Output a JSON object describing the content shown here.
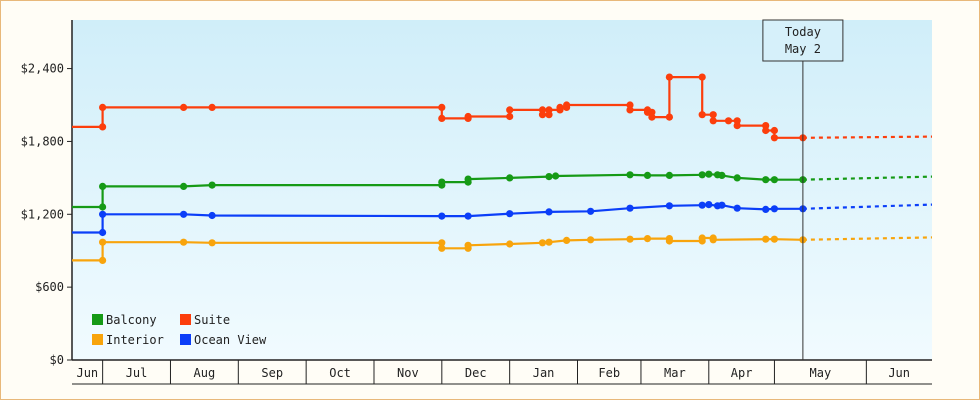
{
  "chart_data": {
    "type": "line",
    "y_ticks": [
      {
        "value": 0,
        "label": "$0"
      },
      {
        "value": 600,
        "label": "$600"
      },
      {
        "value": 1200,
        "label": "$1,200"
      },
      {
        "value": 1800,
        "label": "$1,800"
      },
      {
        "value": 2400,
        "label": "$2,400"
      }
    ],
    "ylim": [
      0,
      2800
    ],
    "xlim": [
      "2025-06-02",
      "2026-06-30"
    ],
    "month_ticks": [
      {
        "label": "Jun",
        "start": "2025-06-02",
        "end": "2025-06-16"
      },
      {
        "label": "Jul",
        "start": "2025-06-16",
        "end": "2025-07-17"
      },
      {
        "label": "Aug",
        "start": "2025-07-17",
        "end": "2025-08-17"
      },
      {
        "label": "Sep",
        "start": "2025-08-17",
        "end": "2025-09-17"
      },
      {
        "label": "Oct",
        "start": "2025-09-17",
        "end": "2025-10-18"
      },
      {
        "label": "Nov",
        "start": "2025-10-18",
        "end": "2025-11-18"
      },
      {
        "label": "Dec",
        "start": "2025-11-18",
        "end": "2025-12-19"
      },
      {
        "label": "Jan",
        "start": "2025-12-19",
        "end": "2026-01-19"
      },
      {
        "label": "Feb",
        "start": "2026-01-19",
        "end": "2026-02-17"
      },
      {
        "label": "Mar",
        "start": "2026-02-17",
        "end": "2026-03-20"
      },
      {
        "label": "Apr",
        "start": "2026-03-20",
        "end": "2026-04-19"
      },
      {
        "label": "May",
        "start": "2026-04-19",
        "end": "2026-05-31"
      },
      {
        "label": "Jun",
        "start": "2026-05-31",
        "end": "2026-06-30"
      }
    ],
    "today": {
      "line1": "Today",
      "line2": "May 2",
      "date": "2026-05-02"
    },
    "legend": [
      {
        "name": "Balcony",
        "color": "#169a16"
      },
      {
        "name": "Suite",
        "color": "#fc3e0c"
      },
      {
        "name": "Interior",
        "color": "#f8a40c"
      },
      {
        "name": "Ocean View",
        "color": "#0b3ef8"
      }
    ],
    "series": [
      {
        "name": "Suite",
        "color": "#fc3e0c",
        "points": [
          [
            "2025-06-02",
            1920
          ],
          [
            "2025-06-16",
            1920
          ],
          [
            "2025-06-16",
            2080
          ],
          [
            "2025-07-23",
            2080
          ],
          [
            "2025-08-05",
            2080
          ],
          [
            "2025-11-18",
            2080
          ],
          [
            "2025-11-18",
            1990
          ],
          [
            "2025-11-30",
            1990
          ],
          [
            "2025-11-30",
            2005
          ],
          [
            "2025-12-19",
            2005
          ],
          [
            "2025-12-19",
            2060
          ],
          [
            "2026-01-03",
            2060
          ],
          [
            "2026-01-03",
            2020
          ],
          [
            "2026-01-06",
            2020
          ],
          [
            "2026-01-06",
            2060
          ],
          [
            "2026-01-11",
            2060
          ],
          [
            "2026-01-11",
            2080
          ],
          [
            "2026-01-14",
            2080
          ],
          [
            "2026-01-14",
            2100
          ],
          [
            "2026-02-12",
            2100
          ],
          [
            "2026-02-12",
            2060
          ],
          [
            "2026-02-20",
            2060
          ],
          [
            "2026-02-20",
            2040
          ],
          [
            "2026-02-22",
            2040
          ],
          [
            "2026-02-22",
            2000
          ],
          [
            "2026-03-02",
            2000
          ],
          [
            "2026-03-02",
            2330
          ],
          [
            "2026-03-17",
            2330
          ],
          [
            "2026-03-17",
            2020
          ],
          [
            "2026-03-22",
            2020
          ],
          [
            "2026-03-22",
            1970
          ],
          [
            "2026-03-29",
            1970
          ],
          [
            "2026-04-02",
            1970
          ],
          [
            "2026-04-02",
            1930
          ],
          [
            "2026-04-15",
            1930
          ],
          [
            "2026-04-15",
            1890
          ],
          [
            "2026-04-19",
            1890
          ],
          [
            "2026-04-19",
            1830
          ],
          [
            "2026-05-02",
            1830
          ]
        ],
        "forecast": [
          [
            "2026-05-02",
            1830
          ],
          [
            "2026-06-30",
            1840
          ]
        ]
      },
      {
        "name": "Balcony",
        "color": "#169a16",
        "points": [
          [
            "2025-06-02",
            1260
          ],
          [
            "2025-06-16",
            1260
          ],
          [
            "2025-06-16",
            1430
          ],
          [
            "2025-07-23",
            1430
          ],
          [
            "2025-08-05",
            1440
          ],
          [
            "2025-11-18",
            1440
          ],
          [
            "2025-11-18",
            1465
          ],
          [
            "2025-11-30",
            1465
          ],
          [
            "2025-11-30",
            1490
          ],
          [
            "2025-12-19",
            1500
          ],
          [
            "2026-01-06",
            1510
          ],
          [
            "2026-01-09",
            1515
          ],
          [
            "2026-02-12",
            1525
          ],
          [
            "2026-02-20",
            1520
          ],
          [
            "2026-03-02",
            1520
          ],
          [
            "2026-03-17",
            1525
          ],
          [
            "2026-03-20",
            1530
          ],
          [
            "2026-03-24",
            1525
          ],
          [
            "2026-03-26",
            1520
          ],
          [
            "2026-04-02",
            1500
          ],
          [
            "2026-04-15",
            1485
          ],
          [
            "2026-04-19",
            1485
          ],
          [
            "2026-05-02",
            1485
          ]
        ],
        "forecast": [
          [
            "2026-05-02",
            1485
          ],
          [
            "2026-06-30",
            1510
          ]
        ]
      },
      {
        "name": "Ocean View",
        "color": "#0b3ef8",
        "points": [
          [
            "2025-06-02",
            1050
          ],
          [
            "2025-06-16",
            1050
          ],
          [
            "2025-06-16",
            1200
          ],
          [
            "2025-07-23",
            1200
          ],
          [
            "2025-08-05",
            1190
          ],
          [
            "2025-11-18",
            1185
          ],
          [
            "2025-11-30",
            1185
          ],
          [
            "2025-12-19",
            1205
          ],
          [
            "2026-01-06",
            1220
          ],
          [
            "2026-01-25",
            1225
          ],
          [
            "2026-02-12",
            1250
          ],
          [
            "2026-03-02",
            1270
          ],
          [
            "2026-03-17",
            1275
          ],
          [
            "2026-03-20",
            1280
          ],
          [
            "2026-03-24",
            1270
          ],
          [
            "2026-03-26",
            1275
          ],
          [
            "2026-04-02",
            1250
          ],
          [
            "2026-04-15",
            1240
          ],
          [
            "2026-04-19",
            1245
          ],
          [
            "2026-05-02",
            1245
          ]
        ],
        "forecast": [
          [
            "2026-05-02",
            1245
          ],
          [
            "2026-06-30",
            1280
          ]
        ]
      },
      {
        "name": "Interior",
        "color": "#f8a40c",
        "points": [
          [
            "2025-06-02",
            820
          ],
          [
            "2025-06-16",
            820
          ],
          [
            "2025-06-16",
            970
          ],
          [
            "2025-07-23",
            970
          ],
          [
            "2025-08-05",
            965
          ],
          [
            "2025-11-18",
            965
          ],
          [
            "2025-11-18",
            920
          ],
          [
            "2025-11-30",
            920
          ],
          [
            "2025-11-30",
            945
          ],
          [
            "2025-12-19",
            955
          ],
          [
            "2026-01-03",
            965
          ],
          [
            "2026-01-06",
            970
          ],
          [
            "2026-01-14",
            985
          ],
          [
            "2026-01-25",
            990
          ],
          [
            "2026-02-12",
            995
          ],
          [
            "2026-02-20",
            1000
          ],
          [
            "2026-03-02",
            1000
          ],
          [
            "2026-03-02",
            980
          ],
          [
            "2026-03-17",
            980
          ],
          [
            "2026-03-17",
            1005
          ],
          [
            "2026-03-22",
            1005
          ],
          [
            "2026-03-22",
            990
          ],
          [
            "2026-04-15",
            995
          ],
          [
            "2026-04-19",
            995
          ],
          [
            "2026-05-02",
            990
          ]
        ],
        "forecast": [
          [
            "2026-05-02",
            990
          ],
          [
            "2026-06-30",
            1010
          ]
        ]
      }
    ]
  }
}
